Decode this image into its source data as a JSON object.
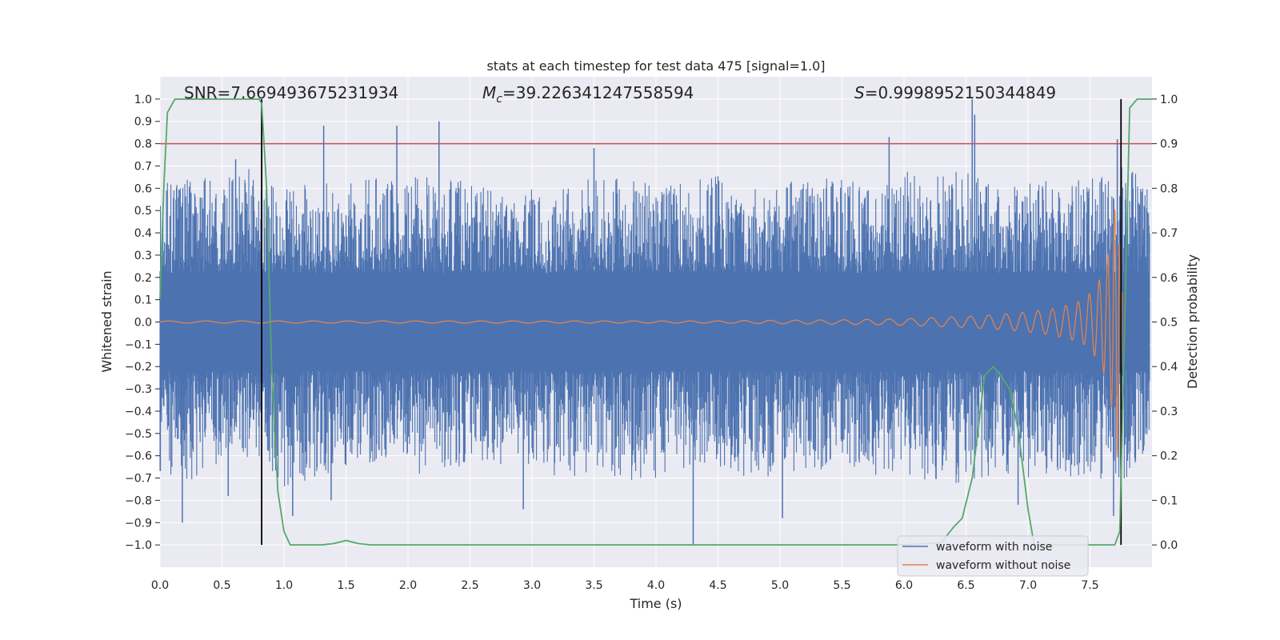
{
  "chart_data": {
    "type": "line",
    "title": "stats at each timestep for test data 475 [signal=1.0]",
    "xlabel": "Time (s)",
    "ylabel": "Whitened strain",
    "y2label": "Detection probability",
    "xlim": [
      0.0,
      8.0
    ],
    "ylim": [
      -1.1,
      1.1
    ],
    "y2lim": [
      -0.05,
      1.05
    ],
    "xticks": [
      "0.0",
      "0.5",
      "1.0",
      "1.5",
      "2.0",
      "2.5",
      "3.0",
      "3.5",
      "4.0",
      "4.5",
      "5.0",
      "5.5",
      "6.0",
      "6.5",
      "7.0",
      "7.5"
    ],
    "yticks": [
      "1.0",
      "0.9",
      "0.8",
      "0.7",
      "0.6",
      "0.5",
      "0.4",
      "0.3",
      "0.2",
      "0.1",
      "0.0",
      "-0.1",
      "-0.2",
      "-0.3",
      "-0.4",
      "-0.5",
      "-0.6",
      "-0.7",
      "-0.8",
      "-0.9",
      "-1.0"
    ],
    "y2ticks": [
      "1.0",
      "0.9",
      "0.8",
      "0.7",
      "0.6",
      "0.5",
      "0.4",
      "0.3",
      "0.2",
      "0.1",
      "0.0"
    ],
    "annotations": {
      "snr_prefix": "SNR=",
      "snr_value": "7.669493675231934",
      "mc_symbol": "M",
      "mc_sub": "c",
      "mc_value": "=39.226341247558594",
      "s_symbol": "S",
      "s_value": "=0.9998952150344849"
    },
    "threshold": {
      "y": 0.8,
      "color": "#c44e52"
    },
    "vlines": [
      0.82,
      7.75
    ],
    "noise_envelope": {
      "x": [
        0.0,
        0.25,
        0.5,
        0.75,
        1.0,
        1.25,
        1.5,
        1.75,
        2.0,
        2.25,
        2.5,
        2.75,
        3.0,
        3.25,
        3.5,
        3.75,
        4.0,
        4.25,
        4.5,
        4.75,
        5.0,
        5.25,
        5.5,
        5.75,
        6.0,
        6.25,
        6.5,
        6.75,
        7.0,
        7.25,
        7.5,
        7.75,
        8.0
      ],
      "upper": [
        0.62,
        0.65,
        0.64,
        0.7,
        0.6,
        0.64,
        0.62,
        0.67,
        0.65,
        0.68,
        0.62,
        0.61,
        0.62,
        0.6,
        0.66,
        0.65,
        0.62,
        0.63,
        0.66,
        0.6,
        0.62,
        0.65,
        0.64,
        0.63,
        0.68,
        0.66,
        0.7,
        0.62,
        0.64,
        0.63,
        0.64,
        0.75,
        0.6
      ],
      "lower": [
        -0.72,
        -0.75,
        -0.65,
        -0.63,
        -0.74,
        -0.7,
        -0.65,
        -0.63,
        -0.7,
        -0.65,
        -0.66,
        -0.64,
        -0.64,
        -0.72,
        -0.66,
        -0.72,
        -0.74,
        -0.68,
        -0.65,
        -0.7,
        -0.7,
        -0.68,
        -0.62,
        -0.7,
        -0.68,
        -0.73,
        -0.72,
        -0.68,
        -0.72,
        -0.7,
        -0.7,
        -0.72,
        -0.6
      ]
    },
    "noise_spikes": [
      {
        "x": 0.18,
        "y": -0.9
      },
      {
        "x": 0.25,
        "y": 0.58
      },
      {
        "x": 0.61,
        "y": 0.73
      },
      {
        "x": 1.32,
        "y": 0.88
      },
      {
        "x": 1.07,
        "y": -0.87
      },
      {
        "x": 1.91,
        "y": 0.88
      },
      {
        "x": 2.25,
        "y": 0.9
      },
      {
        "x": 1.38,
        "y": -0.8
      },
      {
        "x": 2.93,
        "y": -0.84
      },
      {
        "x": 4.3,
        "y": -1.0
      },
      {
        "x": 5.02,
        "y": -0.88
      },
      {
        "x": 6.55,
        "y": 1.0
      },
      {
        "x": 6.57,
        "y": 0.93
      },
      {
        "x": 5.88,
        "y": 0.83
      },
      {
        "x": 7.72,
        "y": 0.82
      },
      {
        "x": 7.69,
        "y": -0.87
      },
      {
        "x": 2.92,
        "y": -0.15
      },
      {
        "x": 0.55,
        "y": -0.78
      },
      {
        "x": 3.5,
        "y": 0.78
      },
      {
        "x": 6.92,
        "y": -0.82
      }
    ],
    "series": [
      {
        "name": "waveform with noise",
        "color": "#4c72b0",
        "note": "dense noise band, envelope and spikes listed above"
      },
      {
        "name": "waveform without noise",
        "color": "#dd8452",
        "x": [
          4.5,
          5.0,
          5.5,
          6.0,
          6.5,
          6.8,
          7.0,
          7.2,
          7.35,
          7.45,
          7.55,
          7.62,
          7.68,
          7.72,
          7.75
        ],
        "amplitude": [
          0.005,
          0.008,
          0.01,
          0.015,
          0.025,
          0.035,
          0.045,
          0.06,
          0.08,
          0.1,
          0.16,
          0.24,
          0.4,
          0.62,
          0.2
        ]
      },
      {
        "name": "detection probability",
        "color": "#55a868",
        "axis": "right",
        "x": [
          0.0,
          0.03,
          0.06,
          0.12,
          0.2,
          0.3,
          0.5,
          0.7,
          0.8,
          0.82,
          0.86,
          0.9,
          0.95,
          1.0,
          1.05,
          1.1,
          1.2,
          1.3,
          1.4,
          1.5,
          1.6,
          1.7,
          2.0,
          3.0,
          4.0,
          5.0,
          6.0,
          6.3,
          6.4,
          6.47,
          6.55,
          6.65,
          6.72,
          6.78,
          6.85,
          6.92,
          7.0,
          7.05,
          7.1,
          7.3,
          7.5,
          7.65,
          7.7,
          7.74,
          7.78,
          7.82,
          7.88,
          8.0
        ],
        "values": [
          0.55,
          0.8,
          0.97,
          1.0,
          1.0,
          1.0,
          1.0,
          1.0,
          1.0,
          0.99,
          0.8,
          0.4,
          0.12,
          0.03,
          0.0,
          0.0,
          0.0,
          0.0,
          0.003,
          0.01,
          0.003,
          0.0,
          0.0,
          0.0,
          0.0,
          0.0,
          0.0,
          0.005,
          0.04,
          0.06,
          0.15,
          0.38,
          0.4,
          0.38,
          0.35,
          0.26,
          0.08,
          0.0,
          0.0,
          0.0,
          0.0,
          0.0,
          0.0,
          0.03,
          0.5,
          0.98,
          1.0,
          1.0
        ]
      }
    ],
    "legend": {
      "position": "lower-right",
      "entries": [
        {
          "label": "waveform with noise",
          "color": "#4c72b0"
        },
        {
          "label": "waveform without noise",
          "color": "#dd8452"
        }
      ]
    }
  }
}
